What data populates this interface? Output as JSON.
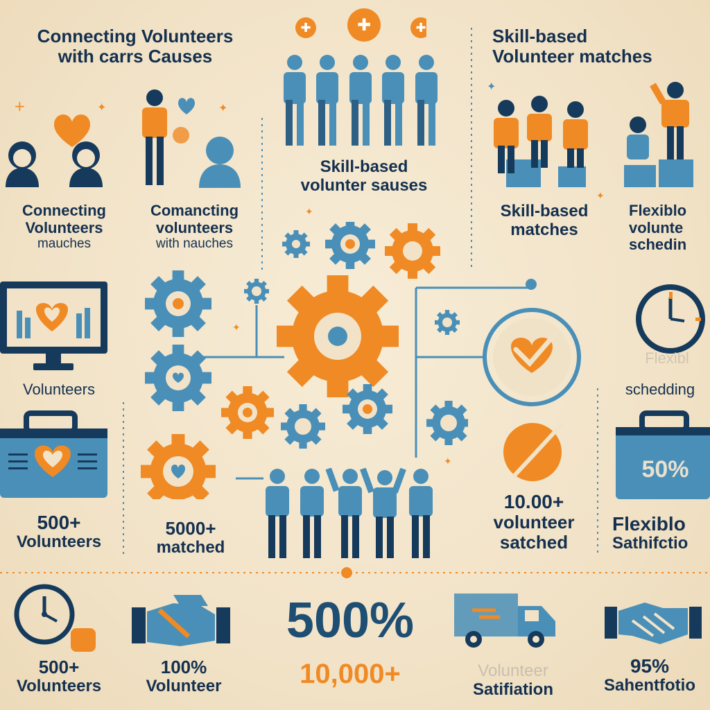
{
  "colors": {
    "navy": "#163a5c",
    "blue": "#4a8fb7",
    "orange": "#f08a24",
    "bg": "#f3e5cc"
  },
  "top_left_title": {
    "line1": "Connecting Volunteers",
    "line2": "with carrs Causes"
  },
  "top_center_title": {
    "line1": "Skill-based",
    "line2": "volunter sauses"
  },
  "top_right_title": {
    "line1": "Skill-based",
    "line2": "Volunteer matches"
  },
  "row2": {
    "left_a": {
      "line1": "Connecting",
      "line2": "Volunteers",
      "line3": "mauches"
    },
    "left_b": {
      "line1": "Comancting",
      "line2": "volunteers",
      "line3": "with nauches"
    },
    "right_a": {
      "line1": "Skill-based",
      "line2": "matches"
    },
    "right_b": {
      "line1": "Flexiblo",
      "line2": "volunte",
      "line3": "schedin"
    }
  },
  "row3": {
    "left_label": "Volunteers",
    "right_faded": "Flexibl",
    "right_label": "schedding"
  },
  "row4": {
    "left_a": {
      "line1": "500+",
      "line2": "Volunteers"
    },
    "left_b": {
      "line1": "5000+",
      "line2": "matched"
    },
    "briefcase_percent": "50%",
    "right_a": {
      "line1": "10.00+",
      "line2": "volunteer",
      "line3": "satched"
    },
    "right_b": {
      "line1": "Flexiblo",
      "line2": "Sathifctio"
    }
  },
  "bottom": {
    "item1": {
      "line1": "500+",
      "line2": "Volunteers"
    },
    "item2": {
      "line1": "100%",
      "line2": "Volunteer"
    },
    "big_percent": "500%",
    "big_number": "10,000+",
    "item4": {
      "line1": "Volunteer",
      "line2": "Satifiation"
    },
    "item5": {
      "line1": "95%",
      "line2": "Sahentfotio"
    }
  },
  "icons": [
    "person-icon",
    "heart-icon",
    "gear-icon",
    "computer-monitor-icon",
    "briefcase-icon",
    "clock-icon",
    "checkmark-icon",
    "handshake-icon",
    "delivery-truck-icon",
    "sparkle-icon"
  ]
}
